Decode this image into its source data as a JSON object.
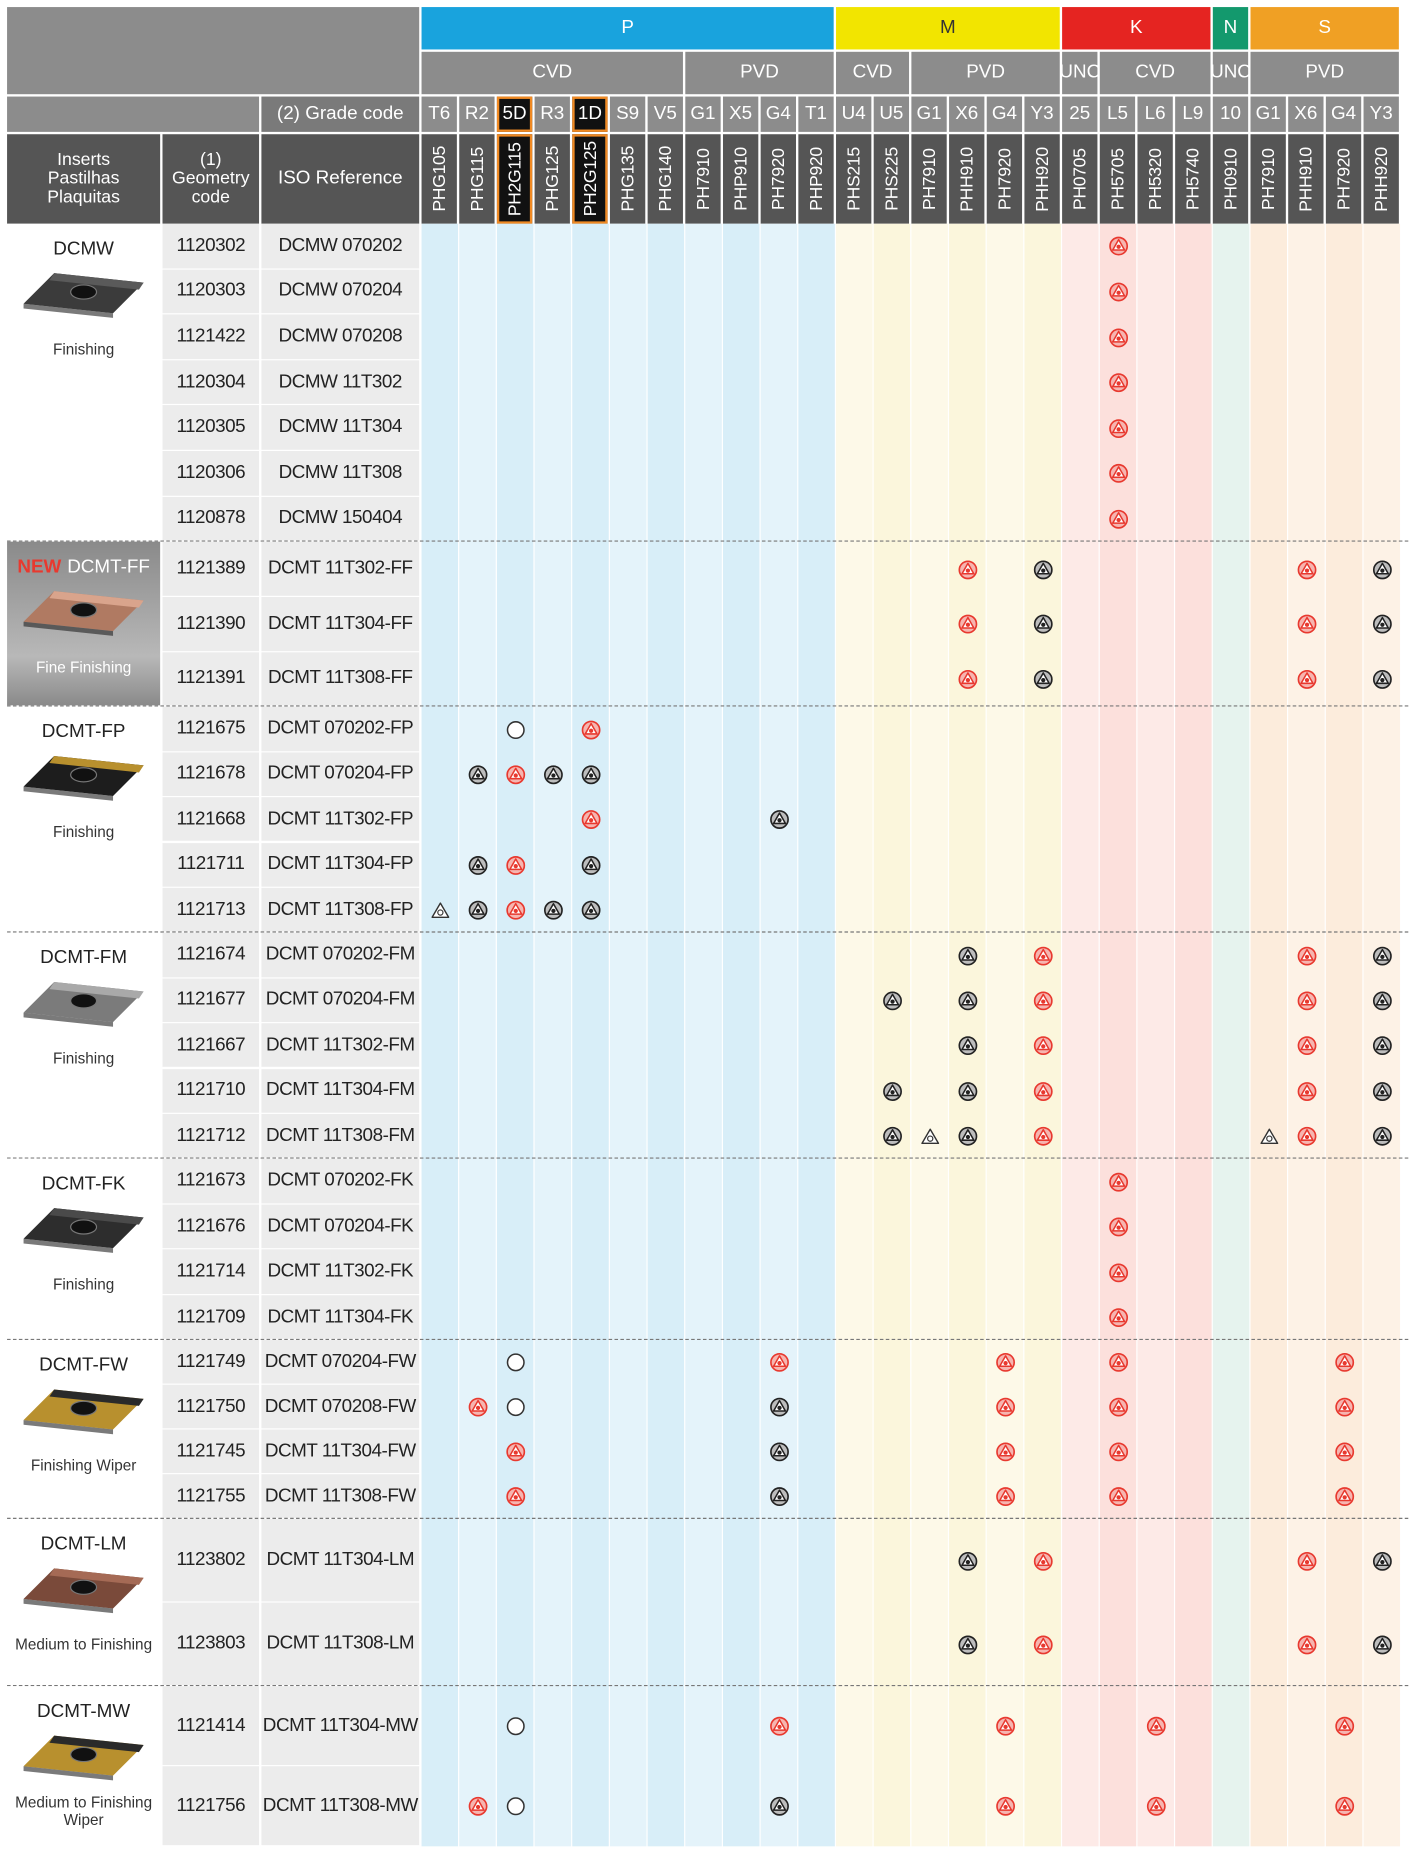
{
  "header": {
    "inserts_label": "Inserts\nPastilhas\nPlaquitas",
    "geometry_label": "(1)\nGeometry\ncode",
    "grade_label": "(2) Grade code",
    "iso_label": "ISO Reference",
    "groups": [
      {
        "label": "P",
        "subgroups": [
          {
            "label": "CVD",
            "grades": [
              {
                "code": "T6",
                "iso": "PHG105"
              },
              {
                "code": "R2",
                "iso": "PHG115"
              },
              {
                "code": "5D",
                "iso": "PH2G115",
                "highlight": true
              },
              {
                "code": "R3",
                "iso": "PHG125"
              },
              {
                "code": "1D",
                "iso": "PH2G125",
                "highlight": true
              },
              {
                "code": "S9",
                "iso": "PHG135"
              },
              {
                "code": "V5",
                "iso": "PHG140"
              }
            ]
          },
          {
            "label": "PVD",
            "grades": [
              {
                "code": "G1",
                "iso": "PH7910"
              },
              {
                "code": "X5",
                "iso": "PHP910"
              },
              {
                "code": "G4",
                "iso": "PH7920"
              },
              {
                "code": "T1",
                "iso": "PHP920"
              }
            ]
          }
        ]
      },
      {
        "label": "M",
        "subgroups": [
          {
            "label": "CVD",
            "grades": [
              {
                "code": "U4",
                "iso": "PHS215"
              },
              {
                "code": "U5",
                "iso": "PHS225"
              }
            ]
          },
          {
            "label": "PVD",
            "grades": [
              {
                "code": "G1",
                "iso": "PH7910"
              },
              {
                "code": "X6",
                "iso": "PHH910"
              },
              {
                "code": "G4",
                "iso": "PH7920"
              },
              {
                "code": "Y3",
                "iso": "PHH920"
              }
            ]
          }
        ]
      },
      {
        "label": "K",
        "subgroups": [
          {
            "label": "UNC",
            "grades": [
              {
                "code": "25",
                "iso": "PH0705"
              }
            ]
          },
          {
            "label": "CVD",
            "grades": [
              {
                "code": "L5",
                "iso": "PH5705"
              },
              {
                "code": "L6",
                "iso": "PH5320"
              },
              {
                "code": "L9",
                "iso": "PH5740"
              }
            ]
          }
        ]
      },
      {
        "label": "N",
        "subgroups": [
          {
            "label": "UNC",
            "grades": [
              {
                "code": "10",
                "iso": "PH0910"
              }
            ]
          }
        ]
      },
      {
        "label": "S",
        "subgroups": [
          {
            "label": "PVD",
            "grades": [
              {
                "code": "G1",
                "iso": "PH7910"
              },
              {
                "code": "X6",
                "iso": "PHH910"
              },
              {
                "code": "G4",
                "iso": "PH7920"
              },
              {
                "code": "Y3",
                "iso": "PHH920"
              }
            ]
          }
        ]
      }
    ]
  },
  "body": [
    {
      "name": "DCMW",
      "caption": "Finishing",
      "rows": [
        {
          "code": "1120302",
          "iso": "DCMW 070202",
          "marks": {
            "18": "red"
          }
        },
        {
          "code": "1120303",
          "iso": "DCMW 070204",
          "marks": {
            "18": "red"
          }
        },
        {
          "code": "1121422",
          "iso": "DCMW 070208",
          "marks": {
            "18": "red"
          }
        },
        {
          "code": "1120304",
          "iso": "DCMW 11T302",
          "marks": {
            "18": "red"
          }
        },
        {
          "code": "1120305",
          "iso": "DCMW 11T304",
          "marks": {
            "18": "red"
          }
        },
        {
          "code": "1120306",
          "iso": "DCMW 11T308",
          "marks": {
            "18": "red"
          }
        },
        {
          "code": "1120878",
          "iso": "DCMW 150404",
          "marks": {
            "18": "red"
          }
        }
      ]
    },
    {
      "badge": "NEW",
      "name": "DCMT-FF",
      "caption": "Fine Finishing",
      "rows": [
        {
          "code": "1121389",
          "iso": "DCMT 11T302-FF",
          "marks": {
            "14": "red",
            "16": "black",
            "23": "red",
            "25": "black"
          }
        },
        {
          "code": "1121390",
          "iso": "DCMT 11T304-FF",
          "marks": {
            "14": "red",
            "16": "black",
            "23": "red",
            "25": "black"
          }
        },
        {
          "code": "1121391",
          "iso": "DCMT 11T308-FF",
          "marks": {
            "14": "red",
            "16": "black",
            "23": "red",
            "25": "black"
          }
        }
      ]
    },
    {
      "name": "DCMT-FP",
      "caption": "Finishing",
      "rows": [
        {
          "code": "1121675",
          "iso": "DCMT 070202-FP",
          "marks": {
            "2": "open",
            "4": "red"
          }
        },
        {
          "code": "1121678",
          "iso": "DCMT 070204-FP",
          "marks": {
            "1": "black",
            "2": "red",
            "3": "black",
            "4": "black"
          }
        },
        {
          "code": "1121668",
          "iso": "DCMT 11T302-FP",
          "marks": {
            "4": "red",
            "9": "black"
          }
        },
        {
          "code": "1121711",
          "iso": "DCMT 11T304-FP",
          "marks": {
            "1": "black",
            "2": "red",
            "4": "black"
          }
        },
        {
          "code": "1121713",
          "iso": "DCMT 11T308-FP",
          "marks": {
            "0": "tri",
            "1": "black",
            "2": "red",
            "3": "black",
            "4": "black"
          }
        }
      ]
    },
    {
      "name": "DCMT-FM",
      "caption": "Finishing",
      "rows": [
        {
          "code": "1121674",
          "iso": "DCMT 070202-FM",
          "marks": {
            "14": "black",
            "16": "red",
            "23": "red",
            "25": "black"
          }
        },
        {
          "code": "1121677",
          "iso": "DCMT 070204-FM",
          "marks": {
            "12": "black",
            "14": "black",
            "16": "red",
            "23": "red",
            "25": "black"
          }
        },
        {
          "code": "1121667",
          "iso": "DCMT 11T302-FM",
          "marks": {
            "14": "black",
            "16": "red",
            "23": "red",
            "25": "black"
          }
        },
        {
          "code": "1121710",
          "iso": "DCMT 11T304-FM",
          "marks": {
            "12": "black",
            "14": "black",
            "16": "red",
            "23": "red",
            "25": "black"
          }
        },
        {
          "code": "1121712",
          "iso": "DCMT 11T308-FM",
          "marks": {
            "12": "black",
            "13": "tri",
            "14": "black",
            "16": "red",
            "22": "tri",
            "23": "red",
            "25": "black"
          }
        }
      ]
    },
    {
      "name": "DCMT-FK",
      "caption": "Finishing",
      "rows": [
        {
          "code": "1121673",
          "iso": "DCMT 070202-FK",
          "marks": {
            "18": "red"
          }
        },
        {
          "code": "1121676",
          "iso": "DCMT 070204-FK",
          "marks": {
            "18": "red"
          }
        },
        {
          "code": "1121714",
          "iso": "DCMT 11T302-FK",
          "marks": {
            "18": "red"
          }
        },
        {
          "code": "1121709",
          "iso": "DCMT 11T304-FK",
          "marks": {
            "18": "red"
          }
        }
      ]
    },
    {
      "name": "DCMT-FW",
      "caption": "Finishing Wiper",
      "rows": [
        {
          "code": "1121749",
          "iso": "DCMT 070204-FW",
          "marks": {
            "2": "open",
            "9": "red",
            "15": "red",
            "18": "red",
            "24": "red"
          }
        },
        {
          "code": "1121750",
          "iso": "DCMT 070208-FW",
          "marks": {
            "1": "red",
            "2": "open",
            "9": "black",
            "15": "red",
            "18": "red",
            "24": "red"
          }
        },
        {
          "code": "1121745",
          "iso": "DCMT 11T304-FW",
          "marks": {
            "2": "red",
            "9": "black",
            "15": "red",
            "18": "red",
            "24": "red"
          }
        },
        {
          "code": "1121755",
          "iso": "DCMT 11T308-FW",
          "marks": {
            "2": "red",
            "9": "black",
            "15": "red",
            "18": "red",
            "24": "red"
          }
        }
      ]
    },
    {
      "name": "DCMT-LM",
      "caption": "Medium to Finishing",
      "rows": [
        {
          "code": "1123802",
          "iso": "DCMT 11T304-LM",
          "marks": {
            "14": "black",
            "16": "red",
            "23": "red",
            "25": "black"
          }
        },
        {
          "code": "1123803",
          "iso": "DCMT 11T308-LM",
          "marks": {
            "14": "black",
            "16": "red",
            "23": "red",
            "25": "black"
          }
        }
      ]
    },
    {
      "name": "DCMT-MW",
      "caption": "Medium to Finishing\nWiper",
      "rows": [
        {
          "code": "1121414",
          "iso": "DCMT 11T304-MW",
          "marks": {
            "2": "open",
            "9": "red",
            "15": "red",
            "19": "red",
            "24": "red"
          }
        },
        {
          "code": "1121756",
          "iso": "DCMT 11T308-MW",
          "marks": {
            "1": "red",
            "2": "open",
            "9": "black",
            "15": "red",
            "19": "red",
            "24": "red"
          }
        }
      ]
    }
  ]
}
